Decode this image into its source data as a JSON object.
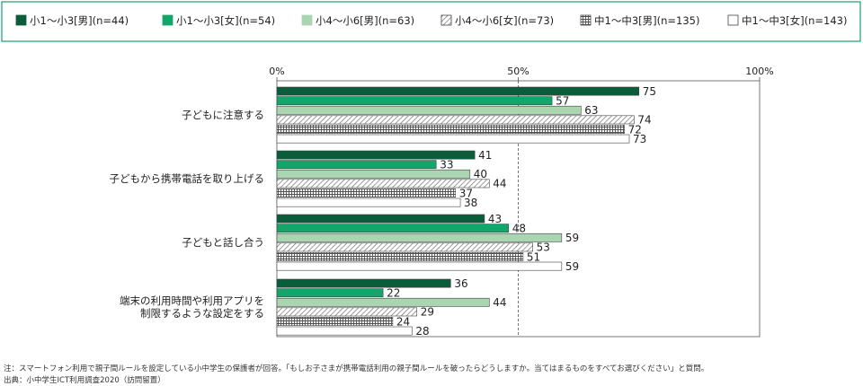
{
  "chart_data": {
    "type": "bar",
    "orientation": "horizontal",
    "title": "",
    "xlabel": "",
    "ylabel": "",
    "xlim": [
      0,
      100
    ],
    "x_ticks": [
      "0%",
      "50%",
      "100%"
    ],
    "grid": "dashed line at 50%",
    "legend_position": "top",
    "categories": [
      "子どもに注意する",
      "子どもから携帯電話を取り上げる",
      "子どもと話し合う",
      "端末の利用時間や利用アプリを\n制限するような設定をする"
    ],
    "series": [
      {
        "name": "小1〜小3[男](n=44)",
        "values": [
          75,
          41,
          43,
          36
        ],
        "color": "#0a5c3a",
        "pattern": "solid"
      },
      {
        "name": "小1〜小3[女](n=54)",
        "values": [
          57,
          33,
          48,
          22
        ],
        "color": "#12a66a",
        "pattern": "solid"
      },
      {
        "name": "小4〜小6[男](n=63)",
        "values": [
          63,
          40,
          59,
          44
        ],
        "color": "#a9d5b0",
        "pattern": "solid"
      },
      {
        "name": "小4〜小6[女](n=73)",
        "values": [
          74,
          44,
          53,
          29
        ],
        "color": "#6f6f6f",
        "pattern": "diagonal"
      },
      {
        "name": "中1〜中3[男](n=135)",
        "values": [
          72,
          37,
          51,
          24
        ],
        "color": "#4f4f4f",
        "pattern": "grid"
      },
      {
        "name": "中1〜中3[女](n=143)",
        "values": [
          73,
          38,
          59,
          28
        ],
        "color": "#ffffff",
        "pattern": "none"
      }
    ]
  },
  "notes": {
    "note1": "注：スマートフォン利用で親子間ルールを設定している小中学生の保護者が回答。「もしお子さまが携帯電話利用の親子間ルールを破ったらどうしますか。当てはまるものをすべてお選びください」と質問。",
    "source": "出典：小中学生ICT利用調査2020（訪問留置）"
  }
}
